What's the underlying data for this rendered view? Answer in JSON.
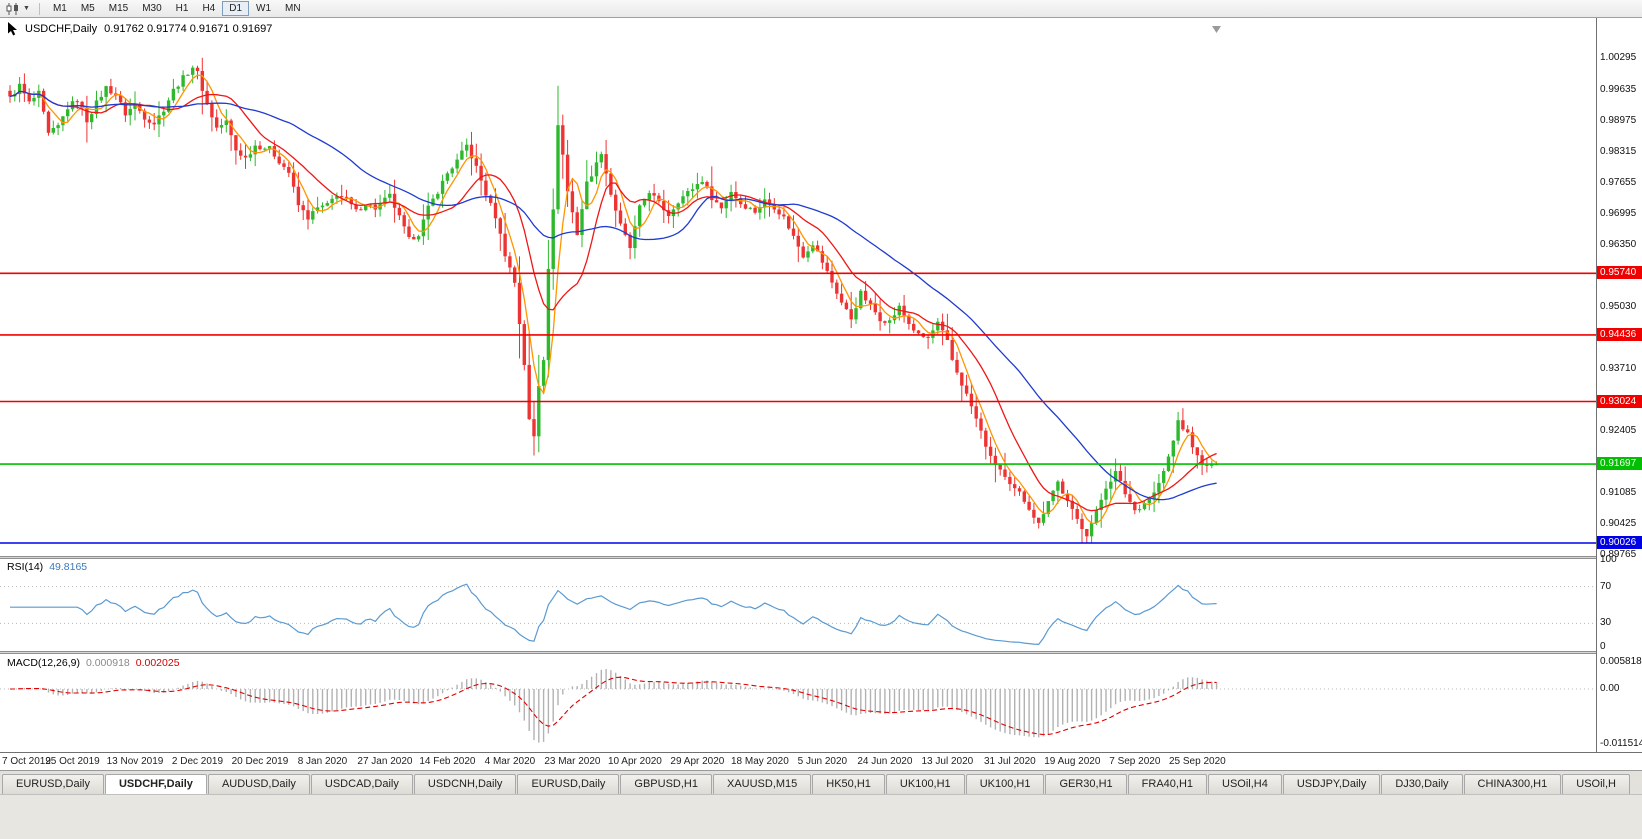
{
  "toolbar": {
    "timeframes": [
      "M1",
      "M5",
      "M15",
      "M30",
      "H1",
      "H4",
      "D1",
      "W1",
      "MN"
    ],
    "active_timeframe": "D1"
  },
  "chart_title": {
    "symbol": "USDCHF,Daily",
    "ohlc": "0.91762 0.91774 0.91671 0.91697"
  },
  "colors": {
    "candle_up": "#2eb82e",
    "candle_down": "#ee3333",
    "level_red": "#f20000",
    "level_green": "#00c000",
    "level_blue": "#0000e6"
  },
  "tabs": {
    "labels": [
      "EURUSD,Daily",
      "USDCHF,Daily",
      "AUDUSD,Daily",
      "USDCAD,Daily",
      "USDCNH,Daily",
      "EURUSD,Daily",
      "GBPUSD,H1",
      "XAUUSD,M15",
      "HK50,H1",
      "UK100,H1",
      "UK100,H1",
      "GER30,H1",
      "FRA40,H1",
      "USOil,H4",
      "USDJPY,Daily",
      "DJ30,Daily",
      "CHINA300,H1",
      "USOil,H"
    ],
    "active_index": 1
  },
  "chart_data": {
    "type": "candlestick",
    "symbol": "USDCHF",
    "timeframe": "Daily",
    "ohlc_current": {
      "open": "0.91762",
      "high": "0.91774",
      "low": "0.91671",
      "close": "0.91697"
    },
    "x_labels": [
      "7 Oct 2019",
      "25 Oct 2019",
      "13 Nov 2019",
      "2 Dec 2019",
      "20 Dec 2019",
      "8 Jan 2020",
      "27 Jan 2020",
      "14 Feb 2020",
      "4 Mar 2020",
      "23 Mar 2020",
      "10 Apr 2020",
      "29 Apr 2020",
      "18 May 2020",
      "5 Jun 2020",
      "24 Jun 2020",
      "13 Jul 2020",
      "31 Jul 2020",
      "19 Aug 2020",
      "7 Sep 2020",
      "25 Sep 2020"
    ],
    "candles_per_label": 13,
    "candle_count": 252,
    "price_axis": {
      "labels": [
        "1.00295",
        "0.99635",
        "0.98975",
        "0.98315",
        "0.97655",
        "0.96995",
        "0.96350",
        "0.95030",
        "0.93710",
        "0.92405",
        "0.91085",
        "0.90425",
        "0.89765"
      ],
      "min": 0.8975,
      "max": 1.0115
    },
    "levels": [
      {
        "value": "0.95740",
        "color": "#f20000",
        "kind": "resistance"
      },
      {
        "value": "0.94436",
        "color": "#f20000",
        "kind": "resistance"
      },
      {
        "value": "0.93024",
        "color": "#f20000",
        "kind": "resistance"
      },
      {
        "value": "0.91697",
        "color": "#00c000",
        "kind": "current-price"
      },
      {
        "value": "0.90026",
        "color": "#0000e6",
        "kind": "support"
      }
    ],
    "anchors": [
      [
        0,
        0.9945
      ],
      [
        2,
        0.9972
      ],
      [
        4,
        0.9935
      ],
      [
        6,
        0.9955
      ],
      [
        8,
        0.9868
      ],
      [
        10,
        0.9885
      ],
      [
        12,
        0.9925
      ],
      [
        14,
        0.9942
      ],
      [
        16,
        0.9898
      ],
      [
        18,
        0.9935
      ],
      [
        20,
        0.9968
      ],
      [
        22,
        0.9952
      ],
      [
        24,
        0.9912
      ],
      [
        26,
        0.9932
      ],
      [
        28,
        0.9905
      ],
      [
        30,
        0.9892
      ],
      [
        32,
        0.9922
      ],
      [
        34,
        0.9962
      ],
      [
        36,
        0.9988
      ],
      [
        38,
        1.0012
      ],
      [
        39,
        0.9998
      ],
      [
        41,
        0.9932
      ],
      [
        43,
        0.9882
      ],
      [
        45,
        0.9895
      ],
      [
        47,
        0.9835
      ],
      [
        49,
        0.9818
      ],
      [
        51,
        0.9845
      ],
      [
        54,
        0.9838
      ],
      [
        56,
        0.9812
      ],
      [
        58,
        0.9788
      ],
      [
        60,
        0.9718
      ],
      [
        62,
        0.9692
      ],
      [
        64,
        0.9712
      ],
      [
        66,
        0.9718
      ],
      [
        68,
        0.9742
      ],
      [
        70,
        0.973
      ],
      [
        72,
        0.9705
      ],
      [
        74,
        0.9722
      ],
      [
        76,
        0.9712
      ],
      [
        79,
        0.9738
      ],
      [
        81,
        0.9692
      ],
      [
        83,
        0.9645
      ],
      [
        85,
        0.9658
      ],
      [
        87,
        0.9712
      ],
      [
        89,
        0.9748
      ],
      [
        91,
        0.9786
      ],
      [
        93,
        0.9812
      ],
      [
        95,
        0.9845
      ],
      [
        97,
        0.9798
      ],
      [
        99,
        0.9742
      ],
      [
        101,
        0.9695
      ],
      [
        103,
        0.9615
      ],
      [
        105,
        0.9555
      ],
      [
        107,
        0.9382
      ],
      [
        108,
        0.9262
      ],
      [
        109,
        0.9228
      ],
      [
        110,
        0.9338
      ],
      [
        111,
        0.9395
      ],
      [
        112,
        0.9588
      ],
      [
        113,
        0.9705
      ],
      [
        114,
        0.9892
      ],
      [
        115,
        0.9825
      ],
      [
        116,
        0.9748
      ],
      [
        118,
        0.9658
      ],
      [
        120,
        0.9765
      ],
      [
        122,
        0.9805
      ],
      [
        123,
        0.9832
      ],
      [
        125,
        0.9742
      ],
      [
        127,
        0.9675
      ],
      [
        129,
        0.9628
      ],
      [
        131,
        0.9712
      ],
      [
        133,
        0.9748
      ],
      [
        135,
        0.9722
      ],
      [
        137,
        0.9698
      ],
      [
        139,
        0.9728
      ],
      [
        141,
        0.9745
      ],
      [
        144,
        0.9772
      ],
      [
        146,
        0.9735
      ],
      [
        148,
        0.9712
      ],
      [
        150,
        0.9748
      ],
      [
        152,
        0.9722
      ],
      [
        155,
        0.9705
      ],
      [
        157,
        0.9728
      ],
      [
        159,
        0.9715
      ],
      [
        161,
        0.9692
      ],
      [
        163,
        0.9652
      ],
      [
        165,
        0.9612
      ],
      [
        167,
        0.9638
      ],
      [
        169,
        0.9598
      ],
      [
        171,
        0.9555
      ],
      [
        173,
        0.9512
      ],
      [
        175,
        0.9478
      ],
      [
        177,
        0.9532
      ],
      [
        179,
        0.9505
      ],
      [
        181,
        0.9478
      ],
      [
        183,
        0.9472
      ],
      [
        185,
        0.9502
      ],
      [
        187,
        0.9468
      ],
      [
        189,
        0.9442
      ],
      [
        191,
        0.9436
      ],
      [
        193,
        0.9468
      ],
      [
        195,
        0.9428
      ],
      [
        196,
        0.939
      ],
      [
        198,
        0.934
      ],
      [
        200,
        0.9292
      ],
      [
        202,
        0.9238
      ],
      [
        204,
        0.9182
      ],
      [
        206,
        0.9158
      ],
      [
        208,
        0.9122
      ],
      [
        210,
        0.9108
      ],
      [
        212,
        0.9078
      ],
      [
        214,
        0.9042
      ],
      [
        216,
        0.9095
      ],
      [
        218,
        0.9132
      ],
      [
        220,
        0.9088
      ],
      [
        222,
        0.9052
      ],
      [
        224,
        0.9022
      ],
      [
        226,
        0.9068
      ],
      [
        228,
        0.9122
      ],
      [
        230,
        0.9152
      ],
      [
        232,
        0.9108
      ],
      [
        234,
        0.9072
      ],
      [
        236,
        0.9088
      ],
      [
        238,
        0.9108
      ],
      [
        240,
        0.9152
      ],
      [
        242,
        0.9218
      ],
      [
        243,
        0.9262
      ],
      [
        245,
        0.9232
      ],
      [
        247,
        0.9185
      ],
      [
        249,
        0.9162
      ],
      [
        251,
        0.917
      ]
    ],
    "noise": 0.0012,
    "wick": 0.0022,
    "moving_averages": [
      {
        "period": 5,
        "color": "#ff9500"
      },
      {
        "period": 13,
        "color": "#f01616"
      },
      {
        "period": 34,
        "color": "#1f3bd0"
      }
    ],
    "rsi": {
      "label": "RSI(14)",
      "value": "49.8165",
      "period": 14,
      "levels": [
        "100",
        "70",
        "30",
        "0"
      ],
      "color": "#5a9ad2"
    },
    "macd": {
      "label": "MACD(12,26,9)",
      "value_main": "0.000918",
      "value_signal": "0.002025",
      "fast": 12,
      "slow": 26,
      "signal": 9,
      "axis_labels": [
        "0.005818",
        "0.00",
        "-0.011514"
      ],
      "ylim": [
        -0.0133,
        0.0074
      ],
      "hist_color": "#b2b2b2",
      "signal_color": "#e00000"
    }
  }
}
